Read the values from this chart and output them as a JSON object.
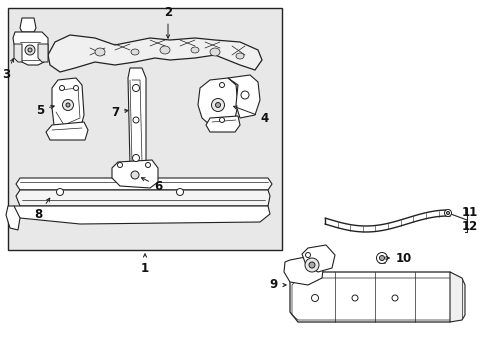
{
  "fig_bg": "#ffffff",
  "box_bg": "#e8e8e8",
  "lc": "#222222",
  "pf": "#ffffff",
  "fs": 8.5
}
